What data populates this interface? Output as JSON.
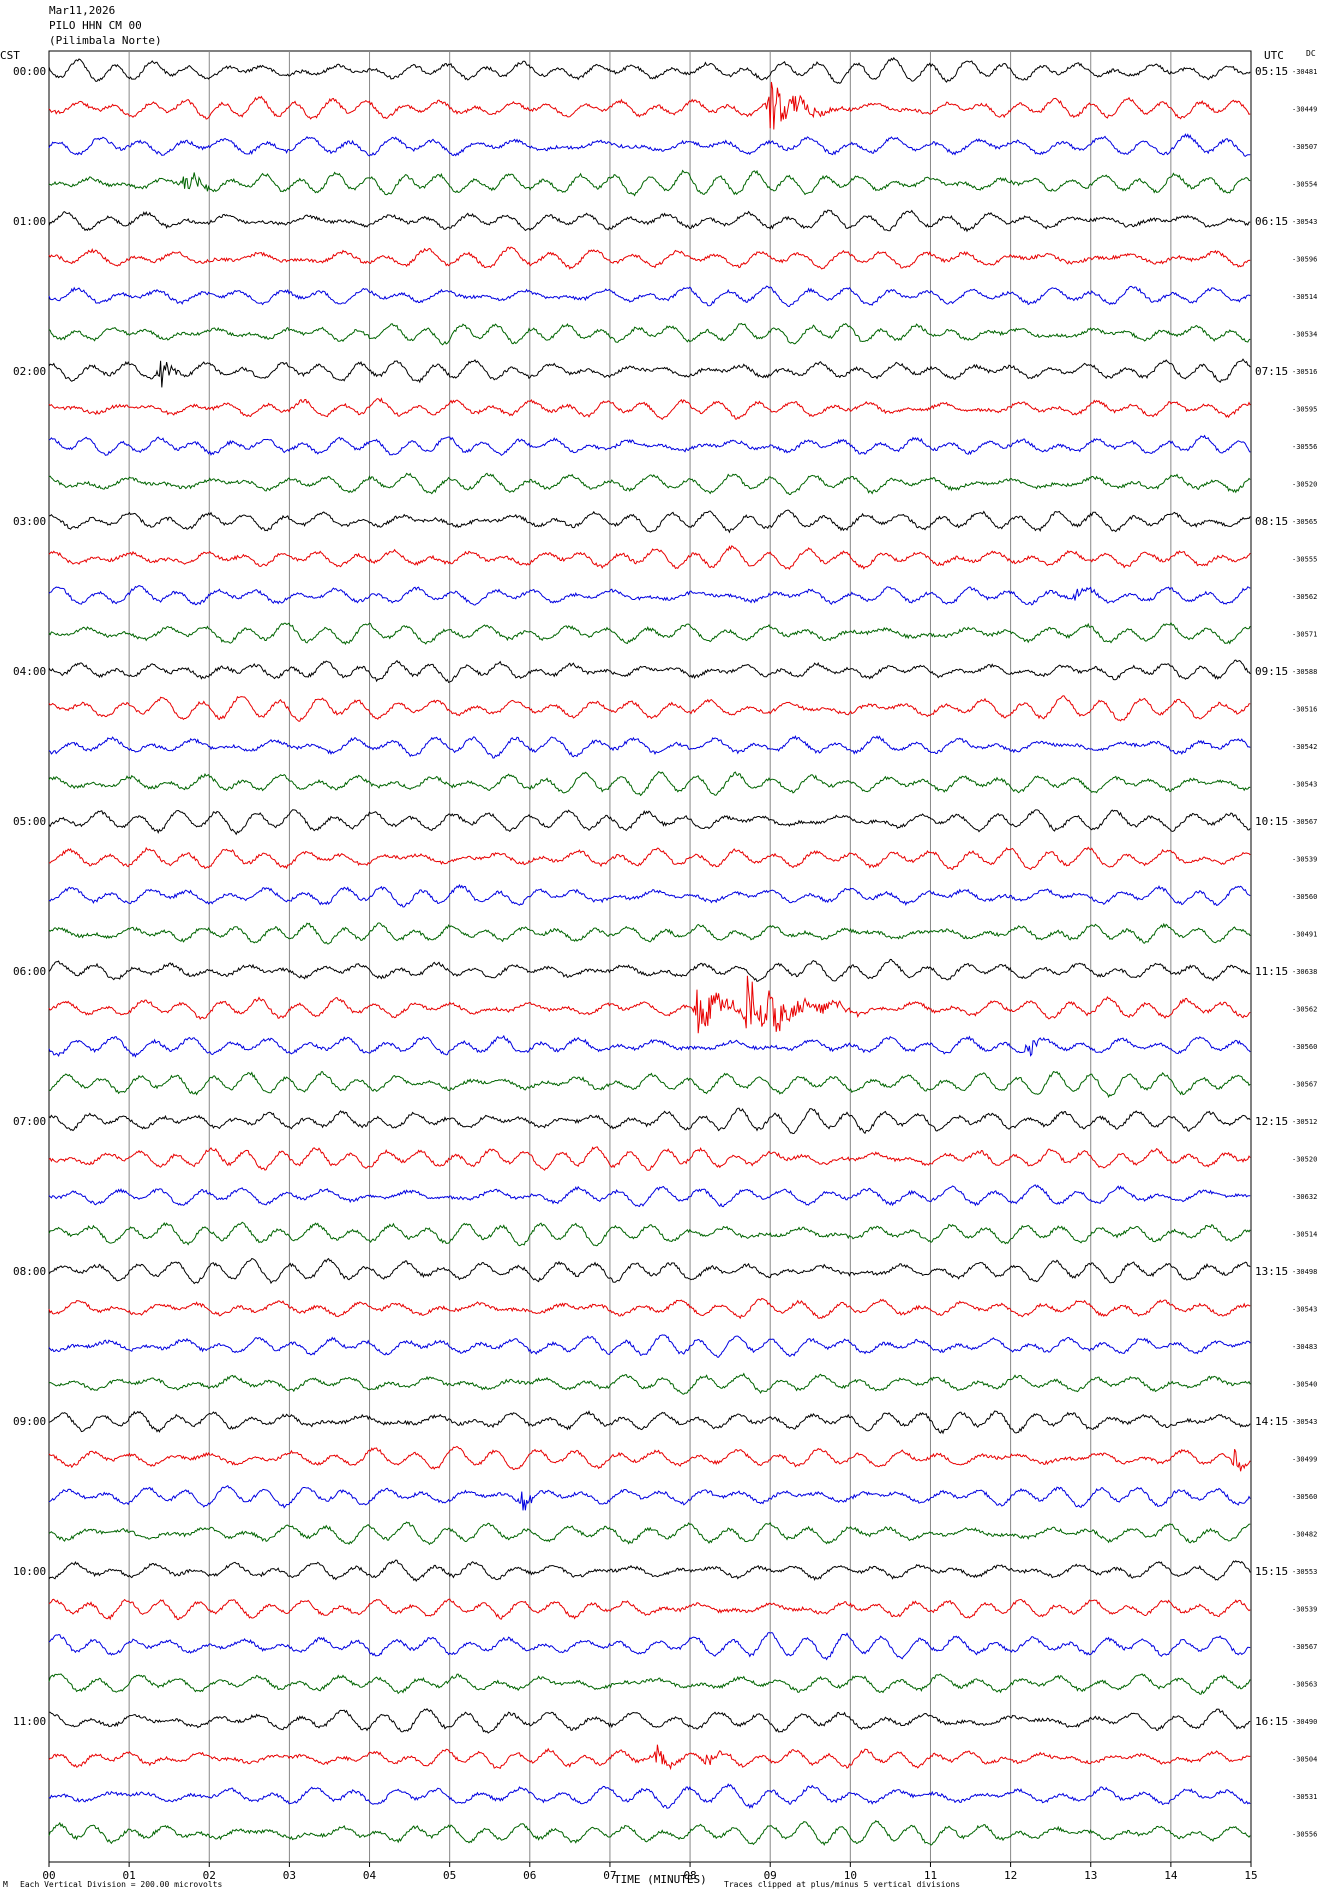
{
  "header": {
    "date": "Mar11,2026",
    "station": "PILO HHN CM 00",
    "location": "(Pilimbala Norte)"
  },
  "axes": {
    "left_tz": "CST",
    "right_tz": "UTC",
    "dc_label": "DC",
    "xlabel": "TIME (MINUTES)"
  },
  "footer": {
    "scale_note": "Each Vertical Division =  200.00 microvolts",
    "clip_note": "Traces clipped at plus/minus 5 vertical divisions",
    "corner_mark": "M"
  },
  "colors": [
    "#000000",
    "#e80000",
    "#0000e0",
    "#006400"
  ],
  "chart_data": {
    "type": "line",
    "title": "Mar11,2026 PILO HHN CM 00 (Pilimbala Norte)",
    "xlabel": "TIME (MINUTES)",
    "xlim": [
      0,
      15
    ],
    "x_ticks": [
      "00",
      "01",
      "02",
      "03",
      "04",
      "05",
      "06",
      "07",
      "08",
      "09",
      "10",
      "11",
      "12",
      "13",
      "14",
      "15"
    ],
    "left_labels": [
      "00:00",
      "01:00",
      "02:00",
      "03:00",
      "04:00",
      "05:00",
      "06:00",
      "07:00",
      "08:00",
      "09:00",
      "10:00",
      "11:00"
    ],
    "right_labels": [
      "05:15",
      "06:15",
      "07:15",
      "08:15",
      "09:15",
      "10:15",
      "11:15",
      "12:15",
      "13:15",
      "14:15",
      "15:15",
      "16:15"
    ],
    "dc_values": [
      "-30481",
      "-30449",
      "-30507",
      "-30554",
      "-30543",
      "-30596",
      "-30514",
      "-30534",
      "-30516",
      "-30595",
      "-30556",
      "-30520",
      "-30565",
      "-30555",
      "-30562",
      "-30571",
      "-30588",
      "-30516",
      "-30542",
      "-30543",
      "-30567",
      "-30539",
      "-30560",
      "-30491",
      "-30638",
      "-30562",
      "-30560",
      "-30567",
      "-30512",
      "-30520",
      "-30632",
      "-30514",
      "-30498",
      "-30543",
      "-30483",
      "-30540",
      "-30543",
      "-30499",
      "-30560",
      "-30482",
      "-30553",
      "-30539",
      "-30567",
      "-30563",
      "-30490",
      "-30504",
      "-30531",
      "-30556"
    ],
    "events": [
      {
        "trace": 1,
        "minute": 9.0,
        "amplitude": 3.2,
        "duration": 0.9
      },
      {
        "trace": 3,
        "minute": 1.7,
        "amplitude": 2.0,
        "duration": 0.35
      },
      {
        "trace": 8,
        "minute": 1.4,
        "amplitude": 1.8,
        "duration": 0.3
      },
      {
        "trace": 14,
        "minute": 12.8,
        "amplitude": 1.2,
        "duration": 0.3
      },
      {
        "trace": 25,
        "minute": 8.1,
        "amplitude": 3.0,
        "duration": 0.8
      },
      {
        "trace": 25,
        "minute": 8.7,
        "amplitude": 4.2,
        "duration": 1.4
      },
      {
        "trace": 26,
        "minute": 12.2,
        "amplitude": 1.6,
        "duration": 0.3
      },
      {
        "trace": 37,
        "minute": 14.8,
        "amplitude": 1.5,
        "duration": 0.2
      },
      {
        "trace": 38,
        "minute": 5.9,
        "amplitude": 1.5,
        "duration": 0.35
      },
      {
        "trace": 45,
        "minute": 7.6,
        "amplitude": 1.6,
        "duration": 0.3
      },
      {
        "trace": 45,
        "minute": 8.2,
        "amplitude": 1.0,
        "duration": 0.4
      }
    ]
  }
}
